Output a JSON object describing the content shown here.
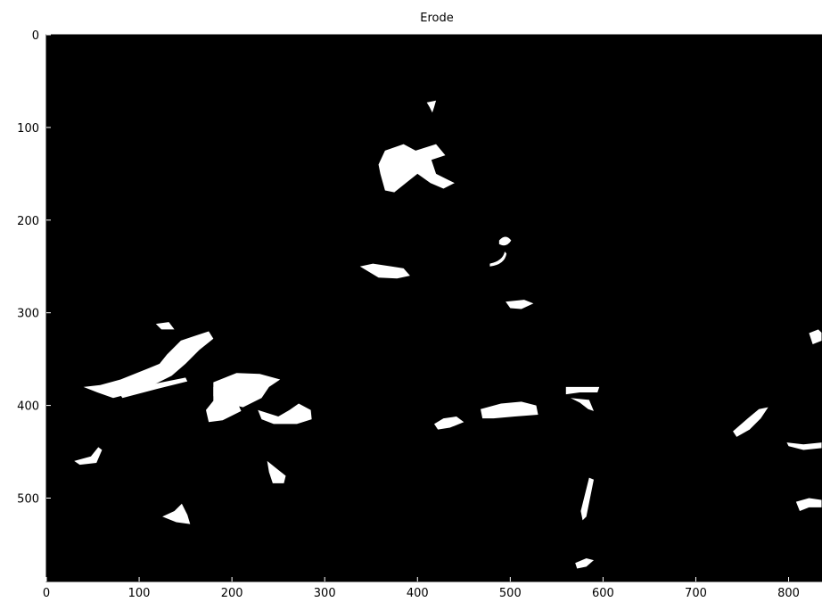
{
  "chart_data": {
    "type": "image",
    "title": "Erode",
    "xlim": [
      0,
      836
    ],
    "ylim": [
      590,
      0
    ],
    "xticks": [
      0,
      100,
      200,
      300,
      400,
      500,
      600,
      700,
      800
    ],
    "yticks": [
      0,
      100,
      200,
      300,
      400,
      500
    ]
  }
}
